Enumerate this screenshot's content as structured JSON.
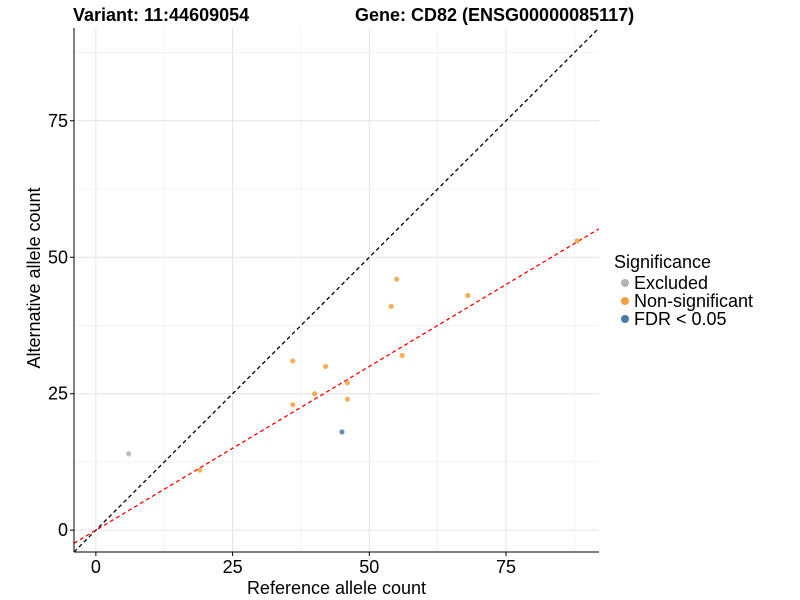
{
  "header": {
    "variant": "Variant: 11:44609054",
    "gene": "Gene: CD82 (ENSG00000085117)"
  },
  "legend": {
    "title": "Significance",
    "items": [
      {
        "label": "Excluded",
        "color": "#b3b3b3"
      },
      {
        "label": "Non-significant",
        "color": "#f5a23a"
      },
      {
        "label": "FDR < 0.05",
        "color": "#4a7aa8"
      }
    ]
  },
  "chart_data": {
    "type": "scatter",
    "xlabel": "Reference allele count",
    "ylabel": "Alternative allele count",
    "xlim": [
      -4,
      92
    ],
    "ylim": [
      -4,
      92
    ],
    "xticks": [
      0,
      25,
      50,
      75
    ],
    "yticks": [
      0,
      25,
      50,
      75
    ],
    "grid": true,
    "legend_position": "right",
    "series": [
      {
        "name": "Excluded",
        "color": "#b3b3b3",
        "points": [
          [
            6,
            14
          ]
        ]
      },
      {
        "name": "Non-significant",
        "color": "#f5a23a",
        "points": [
          [
            19,
            11
          ],
          [
            36,
            23
          ],
          [
            36,
            31
          ],
          [
            40,
            25
          ],
          [
            42,
            30
          ],
          [
            46,
            27
          ],
          [
            46,
            24
          ],
          [
            54,
            41
          ],
          [
            55,
            46
          ],
          [
            56,
            32
          ],
          [
            68,
            43
          ],
          [
            88,
            53
          ]
        ]
      },
      {
        "name": "FDR < 0.05",
        "color": "#4a7aa8",
        "points": [
          [
            45,
            18
          ]
        ]
      }
    ],
    "reference_lines": [
      {
        "slope": 1,
        "intercept": 0,
        "color": "#000000",
        "style": "dashed"
      },
      {
        "slope": 0.6,
        "intercept": 0,
        "color": "#ff0000",
        "style": "dashed"
      }
    ]
  }
}
